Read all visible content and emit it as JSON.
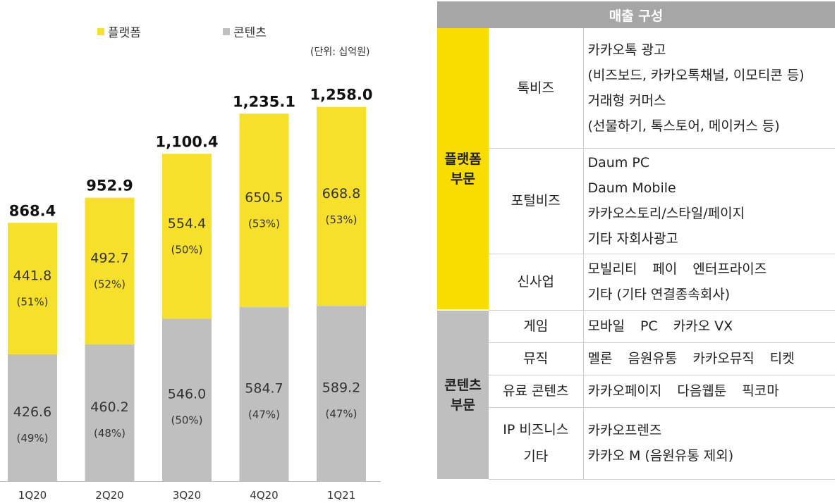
{
  "legend": [
    {
      "label": "플랫폼",
      "color": "#f7e02c"
    },
    {
      "label": "콘텐츠",
      "color": "#bfbfbf"
    }
  ],
  "unit": "(단위: 십억원)",
  "chart_data": {
    "type": "bar",
    "stacked": true,
    "categories": [
      "1Q20",
      "2Q20",
      "3Q20",
      "4Q20",
      "1Q21"
    ],
    "totals": [
      "868.4",
      "952.9",
      "1,100.4",
      "1,235.1",
      "1,258.0"
    ],
    "series": [
      {
        "name": "콘텐츠",
        "color": "#bfbfbf",
        "values": [
          426.6,
          460.2,
          546.0,
          584.7,
          589.2
        ],
        "labels": [
          "426.6",
          "460.2",
          "546.0",
          "584.7",
          "589.2"
        ],
        "shares": [
          "(49%)",
          "(48%)",
          "(50%)",
          "(47%)",
          "(47%)"
        ]
      },
      {
        "name": "플랫폼",
        "color": "#f7e02c",
        "values": [
          441.8,
          492.7,
          554.4,
          650.5,
          668.8
        ],
        "labels": [
          "441.8",
          "492.7",
          "554.4",
          "650.5",
          "668.8"
        ],
        "shares": [
          "(51%)",
          "(52%)",
          "(50%)",
          "(53%)",
          "(53%)"
        ]
      }
    ]
  },
  "table": {
    "title": "매출 구성",
    "segments": [
      {
        "name_line1": "플랫폼",
        "name_line2": "부문",
        "color": "#f9dd00",
        "rows": [
          {
            "sub": [
              "톡비즈"
            ],
            "desc": [
              [
                "카카오톡 광고"
              ],
              [
                "(비즈보드, 카카오톡채널, 이모티콘 등)"
              ],
              [
                "거래형 커머스"
              ],
              [
                "(선물하기, 톡스토어, 메이커스 등)"
              ]
            ]
          },
          {
            "sub": [
              "포털비즈"
            ],
            "desc": [
              [
                "Daum PC"
              ],
              [
                "Daum Mobile"
              ],
              [
                "카카오스토리/스타일/페이지"
              ],
              [
                "기타 자회사광고"
              ]
            ]
          },
          {
            "sub": [
              "신사업"
            ],
            "desc": [
              [
                "모빌리티",
                "페이",
                "엔터프라이즈"
              ],
              [
                "기타 (기타 연결종속회사)"
              ]
            ]
          }
        ]
      },
      {
        "name_line1": "콘텐츠",
        "name_line2": "부문",
        "color": "#bfbfbf",
        "rows": [
          {
            "sub": [
              "게임"
            ],
            "desc": [
              [
                "모바일",
                "PC",
                "카카오 VX"
              ]
            ]
          },
          {
            "sub": [
              "뮤직"
            ],
            "desc": [
              [
                "멜론",
                "음원유통",
                "카카오뮤직",
                "티켓"
              ]
            ]
          },
          {
            "sub": [
              "유료 콘텐츠"
            ],
            "desc": [
              [
                "카카오페이지",
                "다음웹툰",
                "픽코마"
              ]
            ]
          },
          {
            "sub": [
              "IP 비즈니스",
              "기타"
            ],
            "desc": [
              [
                "카카오프렌즈"
              ],
              [
                "카카오 M (음원유통 제외)"
              ]
            ]
          }
        ]
      }
    ]
  }
}
